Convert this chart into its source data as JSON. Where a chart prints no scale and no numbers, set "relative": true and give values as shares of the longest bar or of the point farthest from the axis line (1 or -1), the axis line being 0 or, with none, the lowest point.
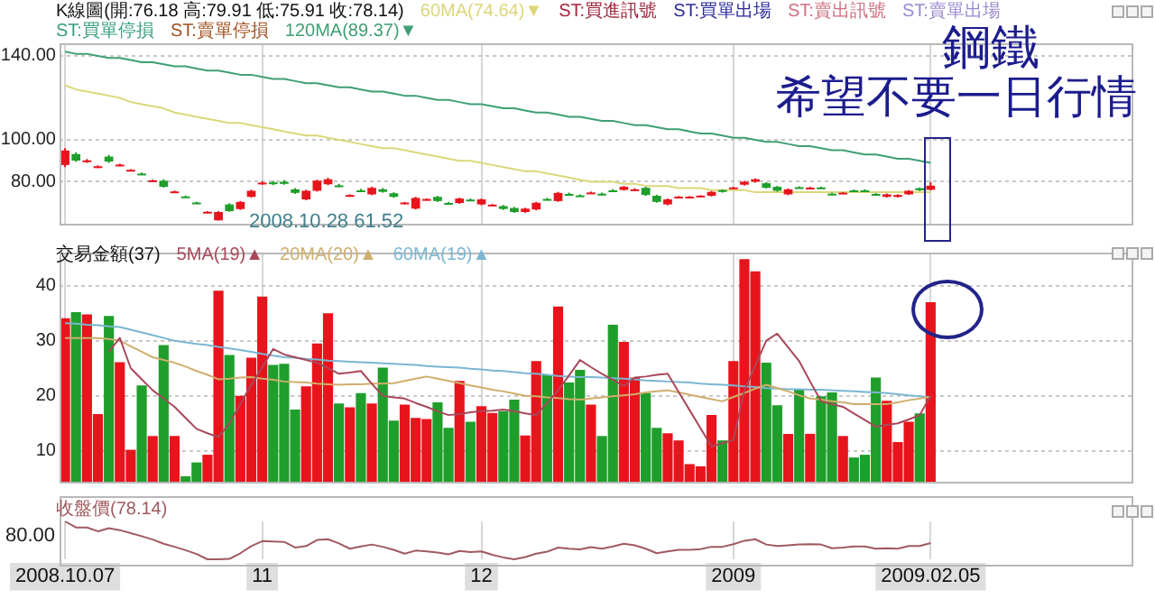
{
  "chart_data": [
    {
      "type": "candlestick",
      "title": "K線圖(開:76.18 高:79.91 低:75.91 收:78.14)",
      "legend": "top left",
      "grid": true,
      "tick_labels": "y",
      "categories": [
        "2008.10.07",
        null,
        null,
        null,
        null,
        null,
        null,
        null,
        null,
        null,
        null,
        null,
        null,
        null,
        null,
        null,
        null,
        null,
        "11",
        null,
        null,
        null,
        null,
        null,
        null,
        null,
        null,
        null,
        null,
        null,
        null,
        null,
        null,
        null,
        null,
        null,
        null,
        null,
        "12",
        null,
        null,
        null,
        null,
        null,
        null,
        null,
        null,
        null,
        null,
        null,
        null,
        null,
        null,
        null,
        null,
        null,
        null,
        null,
        null,
        null,
        null,
        "2009",
        null,
        null,
        null,
        null,
        null,
        null,
        null,
        null,
        null,
        null,
        null,
        null,
        null,
        null,
        null,
        null,
        null,
        "2009.02.05"
      ],
      "ohlc": [
        [
          88,
          96,
          87,
          94.9
        ],
        [
          93.2,
          94,
          89.5,
          90.1
        ],
        [
          89.6,
          90.8,
          89,
          90.2
        ],
        [
          87,
          87.8,
          86.5,
          87.4
        ],
        [
          92,
          92.8,
          89,
          89.6
        ],
        [
          87.8,
          88.6,
          87.3,
          88.2
        ],
        [
          85.3,
          86,
          85,
          85.7
        ],
        [
          83.9,
          84.4,
          83.2,
          83.5
        ],
        [
          80.3,
          81,
          80,
          80.7
        ],
        [
          80.5,
          81.2,
          77.2,
          77.6
        ],
        [
          75,
          75.8,
          74.6,
          75.4
        ],
        [
          73,
          73.4,
          72.4,
          72.7
        ],
        [
          70.1,
          70.5,
          69.6,
          69.8
        ],
        [
          65.4,
          66,
          65,
          65.7
        ],
        [
          61.6,
          66,
          61.52,
          65.6
        ],
        [
          69.2,
          69.8,
          65.7,
          66
        ],
        [
          67,
          70.8,
          66.6,
          70.4
        ],
        [
          72.8,
          76.2,
          72.5,
          75.7
        ],
        [
          79.2,
          80.3,
          78.6,
          79.6
        ],
        [
          79.7,
          80.4,
          78.4,
          79.4
        ],
        [
          80,
          80.8,
          78.6,
          79
        ],
        [
          76.4,
          77,
          74.2,
          74.7
        ],
        [
          71.6,
          76.2,
          71.2,
          75.7
        ],
        [
          75.7,
          81,
          75.3,
          80.5
        ],
        [
          78.8,
          81.9,
          78.4,
          81.2
        ],
        [
          78.3,
          79,
          77.4,
          77.8
        ],
        [
          73.3,
          74,
          72.8,
          73.7
        ],
        [
          75.9,
          76.6,
          75.2,
          75.5
        ],
        [
          74,
          77.6,
          73.6,
          77.1
        ],
        [
          76.4,
          77,
          74.8,
          75.2
        ],
        [
          74.5,
          75,
          72.4,
          72.8
        ],
        [
          69.7,
          70.4,
          69.3,
          70.1
        ],
        [
          67.2,
          72.8,
          66.8,
          72.3
        ],
        [
          71.4,
          72.1,
          71,
          71.8
        ],
        [
          72.8,
          73.3,
          70.4,
          70.8
        ],
        [
          69.9,
          70.4,
          69.3,
          69.5
        ],
        [
          69.9,
          72.4,
          69.5,
          72
        ],
        [
          71.5,
          72,
          70.8,
          71.1
        ],
        [
          69.2,
          72,
          68.8,
          71.6
        ],
        [
          68.7,
          69.4,
          68.3,
          69.1
        ],
        [
          68.4,
          68.9,
          66.6,
          67
        ],
        [
          67.5,
          68,
          65.2,
          65.6
        ],
        [
          65.6,
          67.6,
          65.2,
          67.2
        ],
        [
          66.8,
          70.4,
          66.4,
          70
        ],
        [
          71.8,
          72.3,
          71.1,
          71.4
        ],
        [
          70.8,
          75.2,
          70.4,
          74.7
        ],
        [
          74.2,
          74.8,
          73.5,
          73.8
        ],
        [
          73.5,
          74,
          72.9,
          73.2
        ],
        [
          74.5,
          75.3,
          74.2,
          74.9
        ],
        [
          74.3,
          74.8,
          73.5,
          73.8
        ],
        [
          75.9,
          76.5,
          75.2,
          75.5
        ],
        [
          76.1,
          78,
          75.8,
          77.6
        ],
        [
          76,
          76.9,
          75.6,
          76.4
        ],
        [
          77.1,
          77.6,
          73.3,
          73.7
        ],
        [
          73.3,
          73.8,
          70,
          70.4
        ],
        [
          69.2,
          72,
          68.8,
          71.6
        ],
        [
          72.5,
          73.2,
          72.2,
          72.9
        ],
        [
          72.6,
          73.2,
          72.2,
          72.9
        ],
        [
          73,
          73.6,
          72.7,
          73.4
        ],
        [
          73.3,
          75.6,
          73,
          75.2
        ],
        [
          76,
          76.4,
          74.8,
          75.2
        ],
        [
          76.8,
          77.5,
          76.4,
          77.3
        ],
        [
          78.6,
          80.4,
          78.2,
          80
        ],
        [
          80,
          81.6,
          79.6,
          81.2
        ],
        [
          79.3,
          79.8,
          76.8,
          77.1
        ],
        [
          77.6,
          78,
          75.3,
          75.7
        ],
        [
          74,
          76.8,
          73.6,
          76.4
        ],
        [
          77.4,
          77.8,
          76.8,
          77.1
        ],
        [
          76.9,
          77.6,
          76.6,
          77.2
        ],
        [
          77.3,
          77.7,
          76.6,
          76.9
        ],
        [
          74.3,
          74.8,
          73.6,
          74
        ],
        [
          74.5,
          75.1,
          74.2,
          74.8
        ],
        [
          75.9,
          76.3,
          75.2,
          75.5
        ],
        [
          75.9,
          76.4,
          75.3,
          75.6
        ],
        [
          74.2,
          74.6,
          73.6,
          73.9
        ],
        [
          72.8,
          74.4,
          72.5,
          74
        ],
        [
          72.8,
          74,
          72.5,
          73.7
        ],
        [
          74,
          76,
          73.7,
          75.7
        ],
        [
          76.9,
          77.3,
          75.6,
          75.9
        ],
        [
          76.18,
          79.91,
          75.91,
          78.14
        ]
      ],
      "series": [
        {
          "name": "60MA(74.64)▼",
          "type": "line",
          "color": "#dcd77a",
          "values": [
            126,
            124,
            123,
            122,
            121,
            120,
            118,
            117,
            116,
            115,
            113,
            112,
            111,
            110,
            109,
            108,
            108,
            107,
            106,
            105,
            104,
            103,
            102,
            102,
            101,
            100,
            99,
            98,
            97,
            96,
            96,
            95,
            94,
            93,
            92,
            91,
            90,
            90,
            89,
            88,
            87,
            86,
            85,
            85,
            84,
            83,
            82,
            81,
            80,
            80,
            80,
            79,
            79,
            78,
            78,
            78,
            77,
            77,
            77,
            76,
            76,
            76,
            76,
            75,
            75,
            75,
            75,
            75,
            75,
            75,
            75,
            75,
            75,
            75,
            75,
            75,
            75,
            75,
            75,
            75
          ]
        },
        {
          "name": "120MA(89.37)▼",
          "type": "line",
          "color": "#3f9f74",
          "values": [
            142,
            141,
            141,
            140,
            139,
            139,
            138,
            137,
            137,
            136,
            135,
            135,
            134,
            133,
            133,
            132,
            131,
            131,
            130,
            129,
            129,
            128,
            127,
            127,
            126,
            125,
            125,
            124,
            123,
            123,
            122,
            121,
            121,
            120,
            119,
            119,
            118,
            117,
            117,
            116,
            115,
            115,
            114,
            113,
            113,
            112,
            111,
            111,
            110,
            109,
            109,
            108,
            107,
            107,
            106,
            105,
            105,
            104,
            103,
            103,
            102,
            101,
            101,
            100,
            99,
            99,
            98,
            97,
            97,
            96,
            95,
            95,
            94,
            93,
            93,
            92,
            91,
            91,
            90,
            89
          ]
        }
      ],
      "ylim": [
        60,
        146
      ],
      "yticks": [
        {
          "value": 80,
          "label": "80.00"
        },
        {
          "value": 100,
          "label": "100.00"
        },
        {
          "value": 140,
          "label": "140.00"
        }
      ],
      "annotations": [
        "ST:買進訊號",
        "ST:買單出場",
        "ST:賣出訊號",
        "ST:賣單出場",
        "ST:買單停損",
        "ST:賣單停損",
        "鋼鐵",
        "希望不要一日行情",
        "2008.10.28 61.52"
      ]
    },
    {
      "type": "bar",
      "title": "交易金額(37)",
      "legend": "top left",
      "grid": true,
      "tick_labels": "y",
      "categories": [
        "2008.10.07",
        null,
        null,
        null,
        null,
        null,
        null,
        null,
        null,
        null,
        null,
        null,
        null,
        null,
        null,
        null,
        null,
        null,
        "11",
        null,
        null,
        null,
        null,
        null,
        null,
        null,
        null,
        null,
        null,
        null,
        null,
        null,
        null,
        null,
        null,
        null,
        null,
        null,
        "12",
        null,
        null,
        null,
        null,
        null,
        null,
        null,
        null,
        null,
        null,
        null,
        null,
        null,
        null,
        null,
        null,
        null,
        null,
        null,
        null,
        null,
        null,
        "2009",
        null,
        null,
        null,
        null,
        null,
        null,
        null,
        null,
        null,
        null,
        null,
        null,
        null,
        null,
        null,
        null,
        null,
        "2009.02.05"
      ],
      "series": [
        {
          "type": "bar",
          "values": [
            34.1,
            35.2,
            34.8,
            16.7,
            34.5,
            26.1,
            10.2,
            21.9,
            12.7,
            29.2,
            12.7,
            5.4,
            7.9,
            9.3,
            39.1,
            27.4,
            20.0,
            26.9,
            38.0,
            25.6,
            25.8,
            17.5,
            21.7,
            29.5,
            35.0,
            18.6,
            17.9,
            20.5,
            18.6,
            25.1,
            15.5,
            18.4,
            16.0,
            15.8,
            18.8,
            14.2,
            22.7,
            15.3,
            18.1,
            16.9,
            17.2,
            19.3,
            12.8,
            26.3,
            23.8,
            36.2,
            22.4,
            24.7,
            18.4,
            12.7,
            32.9,
            29.8,
            23.3,
            20.5,
            14.2,
            13.2,
            11.9,
            7.6,
            7.2,
            16.5,
            11.9,
            26.3,
            44.8,
            42.6,
            26.0,
            18.3,
            13.1,
            21.2,
            13.1,
            19.9,
            20.6,
            12.7,
            8.8,
            9.3,
            23.3,
            19.1,
            11.6,
            15.3,
            16.8,
            37
          ],
          "colors": [
            "#e8141c",
            "#1f9e2c",
            "#e8141c",
            "#e8141c",
            "#1f9e2c",
            "#e8141c",
            "#e8141c",
            "#1f9e2c",
            "#e8141c",
            "#1f9e2c",
            "#e8141c",
            "#1f9e2c",
            "#1f9e2c",
            "#e8141c",
            "#e8141c",
            "#1f9e2c",
            "#e8141c",
            "#e8141c",
            "#e8141c",
            "#1f9e2c",
            "#1f9e2c",
            "#1f9e2c",
            "#e8141c",
            "#e8141c",
            "#e8141c",
            "#1f9e2c",
            "#e8141c",
            "#1f9e2c",
            "#e8141c",
            "#1f9e2c",
            "#1f9e2c",
            "#e8141c",
            "#e8141c",
            "#e8141c",
            "#1f9e2c",
            "#1f9e2c",
            "#e8141c",
            "#1f9e2c",
            "#e8141c",
            "#e8141c",
            "#1f9e2c",
            "#1f9e2c",
            "#e8141c",
            "#e8141c",
            "#1f9e2c",
            "#e8141c",
            "#1f9e2c",
            "#1f9e2c",
            "#e8141c",
            "#1f9e2c",
            "#1f9e2c",
            "#e8141c",
            "#e8141c",
            "#1f9e2c",
            "#1f9e2c",
            "#e8141c",
            "#e8141c",
            "#e8141c",
            "#e8141c",
            "#e8141c",
            "#1f9e2c",
            "#e8141c",
            "#e8141c",
            "#e8141c",
            "#1f9e2c",
            "#1f9e2c",
            "#e8141c",
            "#1f9e2c",
            "#e8141c",
            "#1f9e2c",
            "#1f9e2c",
            "#e8141c",
            "#1f9e2c",
            "#1f9e2c",
            "#1f9e2c",
            "#e8141c",
            "#e8141c",
            "#e8141c",
            "#1f9e2c",
            "#e8141c"
          ]
        },
        {
          "name": "5MA(19)▲",
          "type": "line",
          "color": "#a8485a",
          "values": [
            null,
            null,
            null,
            null,
            28,
            30.5,
            25,
            23,
            21,
            19.5,
            18,
            16,
            14,
            13.2,
            12.5,
            15,
            18.5,
            22,
            25.2,
            28.5,
            27.5,
            27,
            26.5,
            26,
            25,
            24,
            24.2,
            24.5,
            22.2,
            20,
            19.7,
            19.5,
            18.7,
            18,
            17.2,
            16.5,
            16.7,
            17,
            17.2,
            17.3,
            17.5,
            17.2,
            16.8,
            16.5,
            18.7,
            21,
            23.7,
            26.5,
            25.2,
            24,
            22.9,
            21.8,
            23.3,
            23.5,
            23.8,
            24,
            20.7,
            17.4,
            14.1,
            10.8,
            11.4,
            12,
            21,
            25.5,
            30,
            31.3,
            28.8,
            26.3,
            22.6,
            19,
            18.5,
            18,
            16.8,
            15.6,
            14.4,
            14.7,
            15,
            15.7,
            16.5,
            20
          ]
        },
        {
          "name": "20MA(20)▲",
          "type": "line",
          "color": "#cfae6c",
          "values": [
            30.5,
            30.5,
            30.5,
            30.5,
            30.3,
            30,
            29,
            28,
            27,
            26.5,
            26,
            25.3,
            24.5,
            23.8,
            23,
            23.1,
            23.3,
            23.4,
            23.1,
            22.9,
            22.6,
            22.5,
            22.4,
            22.2,
            22.1,
            22,
            22.1,
            22.1,
            22.2,
            22.2,
            22.3,
            22.7,
            23.1,
            23.5,
            23.1,
            22.7,
            22.3,
            21.9,
            21.5,
            21.1,
            20.8,
            20.4,
            20,
            19.9,
            19.7,
            19.6,
            19.4,
            19.3,
            19.5,
            19.7,
            19.9,
            20.1,
            20.3,
            20.6,
            20.8,
            21,
            20.6,
            20.2,
            19.8,
            19.4,
            19,
            19.8,
            20.5,
            21.3,
            22,
            21.4,
            20.8,
            20.1,
            19.5,
            19.3,
            19,
            18.8,
            18.5,
            18.5,
            18.5,
            18.5,
            18.8,
            19.2,
            19.5,
            19.8
          ]
        },
        {
          "name": "60MA(19)▲",
          "type": "line",
          "color": "#7ab6d2",
          "values": [
            33.2,
            33.1,
            32.9,
            32.8,
            32.6,
            32.5,
            32,
            31.5,
            31,
            30.5,
            30,
            29.7,
            29.4,
            29.2,
            28.9,
            28.6,
            28.3,
            28,
            27.6,
            27.3,
            27,
            26.9,
            26.7,
            26.6,
            26.4,
            26.3,
            26.2,
            26.1,
            26,
            25.9,
            25.8,
            25.7,
            25.6,
            25.4,
            25.3,
            25.2,
            25.1,
            24.9,
            24.8,
            24.6,
            24.5,
            24.3,
            24.1,
            24,
            23.8,
            23.6,
            23.5,
            23.4,
            23.4,
            23.3,
            23.2,
            23.1,
            23,
            22.8,
            22.7,
            22.6,
            22.5,
            22.4,
            22.2,
            22.1,
            22,
            21.9,
            21.7,
            21.6,
            21.4,
            21.3,
            21.2,
            21.2,
            21.1,
            21.1,
            21,
            20.9,
            20.8,
            20.7,
            20.6,
            20.5,
            20.3,
            20.1,
            19.9,
            19.7
          ]
        }
      ],
      "ylim": [
        4.4,
        46
      ],
      "yticks": [
        10,
        20,
        30,
        40
      ]
    },
    {
      "type": "line",
      "legend": "top left",
      "grid": true,
      "relative": true,
      "annotations": [
        "80.00"
      ],
      "categories": [
        "2008.10.07",
        null,
        null,
        null,
        null,
        null,
        null,
        null,
        null,
        null,
        null,
        null,
        null,
        null,
        null,
        null,
        null,
        null,
        "11",
        null,
        null,
        null,
        null,
        null,
        null,
        null,
        null,
        null,
        null,
        null,
        null,
        null,
        null,
        null,
        null,
        null,
        null,
        null,
        "12",
        null,
        null,
        null,
        null,
        null,
        null,
        null,
        null,
        null,
        null,
        null,
        null,
        null,
        null,
        null,
        null,
        null,
        null,
        null,
        null,
        null,
        null,
        "2009",
        null,
        null,
        null,
        null,
        null,
        null,
        null,
        null,
        null,
        null,
        null,
        null,
        null,
        null,
        null,
        null,
        null,
        "2009.02.05"
      ],
      "series": [
        {
          "name": "收盤價(78.14)",
          "color": "#a05a5e",
          "values": [
            1,
            0.84,
            0.84,
            0.74,
            0.82,
            0.77,
            0.69,
            0.61,
            0.52,
            0.41,
            0.33,
            0.24,
            0.14,
            0,
            0,
            0.01,
            0.16,
            0.35,
            0.48,
            0.47,
            0.46,
            0.31,
            0.35,
            0.51,
            0.53,
            0.42,
            0.28,
            0.34,
            0.39,
            0.33,
            0.25,
            0.15,
            0.23,
            0.21,
            0.18,
            0.13,
            0.22,
            0.19,
            0.21,
            0.12,
            0.05,
            0,
            0.06,
            0.15,
            0.2,
            0.31,
            0.28,
            0.26,
            0.32,
            0.28,
            0.34,
            0.41,
            0.37,
            0.28,
            0.16,
            0.21,
            0.25,
            0.25,
            0.27,
            0.33,
            0.33,
            0.4,
            0.49,
            0.53,
            0.39,
            0.35,
            0.37,
            0.39,
            0.4,
            0.39,
            0.29,
            0.31,
            0.34,
            0.34,
            0.28,
            0.29,
            0.28,
            0.35,
            0.35,
            0.43
          ]
        }
      ]
    }
  ]
}
